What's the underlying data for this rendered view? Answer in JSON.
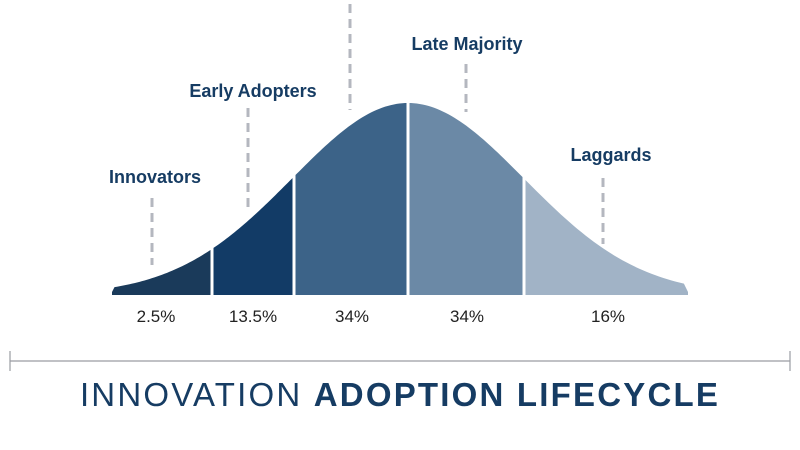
{
  "title": {
    "light": "INNOVATION",
    "bold": "ADOPTION LIFECYCLE"
  },
  "colors": {
    "innovators": "#1a3a5a",
    "early_adopters": "#123b66",
    "early_majority": "#3c6388",
    "late_majority": "#6b89a6",
    "laggards": "#a1b3c6",
    "label_text": "#163c63",
    "dash": "#b4b7bf"
  },
  "segments": [
    {
      "name": "Innovators",
      "percent": "2.5%",
      "share": 2.5
    },
    {
      "name": "Early Adopters",
      "percent": "13.5%",
      "share": 13.5
    },
    {
      "name": "",
      "percent": "34%",
      "share": 34
    },
    {
      "name": "Late Majority",
      "percent": "34%",
      "share": 34
    },
    {
      "name": "Laggards",
      "percent": "16%",
      "share": 16
    }
  ]
}
